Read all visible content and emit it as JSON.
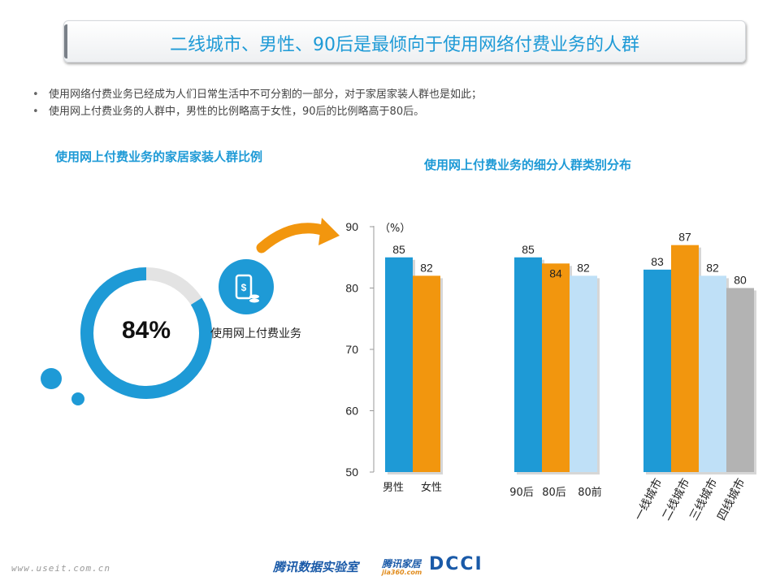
{
  "title": "二线城市、男性、90后是最倾向于使用网络付费业务的人群",
  "bullets": [
    "使用网络付费业务已经成为人们日常生活中不可分割的一部分，对于家居家装人群也是如此；",
    "使用网上付费业务的人群中，男性的比例略高于女性，90后的比例略高于80后。"
  ],
  "donut": {
    "subtitle": "使用网上付费业务的家居家装人群比例",
    "value": 84,
    "value_label": "84%",
    "label": "使用网上付费业务",
    "icon": "mobile-payment-icon",
    "colors": {
      "fill": "#1e9ad6",
      "track": "#e3e3e3"
    }
  },
  "colors": {
    "accent": "#1e9ad6",
    "blue": "#1e9ad6",
    "orange": "#f2960e",
    "lightblue": "#bfe0f7",
    "gray": "#b3b3b3"
  },
  "chart_data": {
    "type": "bar",
    "title": "使用网上付费业务的细分人群类别分布",
    "ylabel": "（%）",
    "ylim": [
      50,
      90
    ],
    "yticks": [
      "50",
      "60",
      "70",
      "80",
      "90"
    ],
    "groups": [
      {
        "categories": [
          "男性",
          "女性"
        ],
        "values": [
          85,
          82
        ],
        "colors": [
          "#1e9ad6",
          "#f2960e"
        ]
      },
      {
        "categories": [
          "90后",
          "80后",
          "80前"
        ],
        "values": [
          85,
          84,
          82
        ],
        "colors": [
          "#1e9ad6",
          "#f2960e",
          "#bfe0f7"
        ]
      },
      {
        "categories": [
          "一线城市",
          "二线城市",
          "三线城市",
          "四线城市"
        ],
        "values": [
          83,
          87,
          82,
          80
        ],
        "colors": [
          "#1e9ad6",
          "#f2960e",
          "#bfe0f7",
          "#b3b3b3"
        ]
      }
    ]
  },
  "footer": {
    "site": "www.useit.com.cn",
    "lab": "腾讯数据实验室",
    "home": "腾讯家居",
    "home_sub": "jia360.com",
    "dcci": "DCCI"
  }
}
